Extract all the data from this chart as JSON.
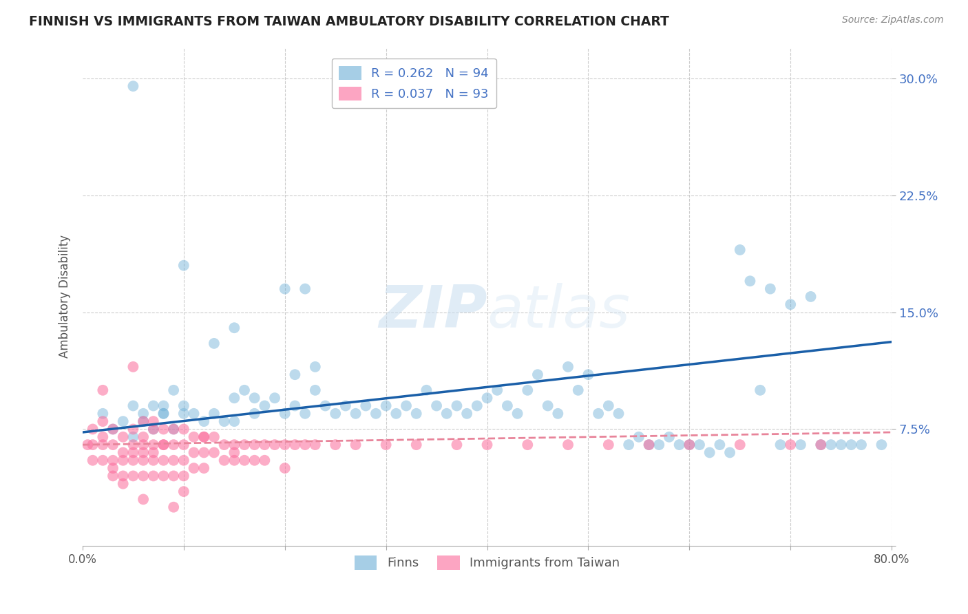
{
  "title": "FINNISH VS IMMIGRANTS FROM TAIWAN AMBULATORY DISABILITY CORRELATION CHART",
  "source": "Source: ZipAtlas.com",
  "ylabel": "Ambulatory Disability",
  "xlabel": "",
  "xlim": [
    0.0,
    0.8
  ],
  "ylim": [
    0.0,
    0.32
  ],
  "yticks": [
    0.0,
    0.075,
    0.15,
    0.225,
    0.3
  ],
  "ytick_labels": [
    "",
    "7.5%",
    "15.0%",
    "22.5%",
    "30.0%"
  ],
  "xticks": [
    0.0,
    0.1,
    0.2,
    0.3,
    0.4,
    0.5,
    0.6,
    0.7,
    0.8
  ],
  "xtick_labels": [
    "0.0%",
    "",
    "",
    "",
    "",
    "",
    "",
    "",
    "80.0%"
  ],
  "background_color": "#ffffff",
  "grid_color": "#cccccc",
  "finns_color": "#6baed6",
  "taiwan_color": "#fb6a9a",
  "finns_line_color": "#1a5fa8",
  "taiwan_line_color": "#e8849a",
  "finns_R": 0.262,
  "finns_N": 94,
  "taiwan_R": 0.037,
  "taiwan_N": 93,
  "watermark": "ZIPatlas",
  "legend_label_finns": "Finns",
  "legend_label_taiwan": "Immigrants from Taiwan",
  "finns_x": [
    0.02,
    0.03,
    0.04,
    0.05,
    0.05,
    0.06,
    0.06,
    0.07,
    0.07,
    0.08,
    0.08,
    0.09,
    0.09,
    0.1,
    0.1,
    0.11,
    0.12,
    0.13,
    0.13,
    0.14,
    0.15,
    0.15,
    0.16,
    0.17,
    0.18,
    0.19,
    0.2,
    0.21,
    0.22,
    0.22,
    0.23,
    0.24,
    0.25,
    0.26,
    0.27,
    0.28,
    0.29,
    0.3,
    0.31,
    0.32,
    0.33,
    0.34,
    0.35,
    0.36,
    0.37,
    0.38,
    0.39,
    0.4,
    0.41,
    0.42,
    0.43,
    0.44,
    0.45,
    0.46,
    0.47,
    0.48,
    0.49,
    0.5,
    0.51,
    0.52,
    0.53,
    0.54,
    0.55,
    0.56,
    0.57,
    0.58,
    0.59,
    0.6,
    0.61,
    0.62,
    0.63,
    0.64,
    0.65,
    0.66,
    0.67,
    0.68,
    0.69,
    0.7,
    0.71,
    0.72,
    0.73,
    0.74,
    0.75,
    0.76,
    0.77,
    0.79,
    0.15,
    0.21,
    0.17,
    0.23,
    0.1,
    0.05,
    0.08,
    0.2
  ],
  "finns_y": [
    0.085,
    0.075,
    0.08,
    0.09,
    0.07,
    0.08,
    0.085,
    0.09,
    0.075,
    0.085,
    0.09,
    0.1,
    0.075,
    0.085,
    0.09,
    0.085,
    0.08,
    0.13,
    0.085,
    0.08,
    0.095,
    0.08,
    0.1,
    0.085,
    0.09,
    0.095,
    0.085,
    0.09,
    0.085,
    0.165,
    0.1,
    0.09,
    0.085,
    0.09,
    0.085,
    0.09,
    0.085,
    0.09,
    0.085,
    0.09,
    0.085,
    0.1,
    0.09,
    0.085,
    0.09,
    0.085,
    0.09,
    0.095,
    0.1,
    0.09,
    0.085,
    0.1,
    0.11,
    0.09,
    0.085,
    0.115,
    0.1,
    0.11,
    0.085,
    0.09,
    0.085,
    0.065,
    0.07,
    0.065,
    0.065,
    0.07,
    0.065,
    0.065,
    0.065,
    0.06,
    0.065,
    0.06,
    0.19,
    0.17,
    0.1,
    0.165,
    0.065,
    0.155,
    0.065,
    0.16,
    0.065,
    0.065,
    0.065,
    0.065,
    0.065,
    0.065,
    0.14,
    0.11,
    0.095,
    0.115,
    0.18,
    0.295,
    0.085,
    0.165
  ],
  "taiwan_x": [
    0.005,
    0.01,
    0.01,
    0.01,
    0.02,
    0.02,
    0.02,
    0.02,
    0.03,
    0.03,
    0.03,
    0.03,
    0.04,
    0.04,
    0.04,
    0.04,
    0.05,
    0.05,
    0.05,
    0.05,
    0.05,
    0.06,
    0.06,
    0.06,
    0.06,
    0.06,
    0.06,
    0.07,
    0.07,
    0.07,
    0.07,
    0.07,
    0.08,
    0.08,
    0.08,
    0.08,
    0.09,
    0.09,
    0.09,
    0.09,
    0.1,
    0.1,
    0.1,
    0.1,
    0.11,
    0.11,
    0.11,
    0.12,
    0.12,
    0.12,
    0.13,
    0.13,
    0.14,
    0.14,
    0.15,
    0.15,
    0.16,
    0.16,
    0.17,
    0.17,
    0.18,
    0.19,
    0.2,
    0.21,
    0.22,
    0.23,
    0.25,
    0.27,
    0.3,
    0.33,
    0.37,
    0.4,
    0.44,
    0.48,
    0.52,
    0.56,
    0.6,
    0.65,
    0.7,
    0.73,
    0.02,
    0.05,
    0.08,
    0.03,
    0.06,
    0.09,
    0.04,
    0.07,
    0.1,
    0.12,
    0.15,
    0.18,
    0.2
  ],
  "taiwan_y": [
    0.065,
    0.075,
    0.065,
    0.055,
    0.07,
    0.08,
    0.065,
    0.055,
    0.075,
    0.065,
    0.055,
    0.045,
    0.07,
    0.06,
    0.055,
    0.045,
    0.075,
    0.065,
    0.06,
    0.055,
    0.045,
    0.08,
    0.07,
    0.065,
    0.06,
    0.055,
    0.045,
    0.075,
    0.065,
    0.06,
    0.055,
    0.045,
    0.075,
    0.065,
    0.055,
    0.045,
    0.075,
    0.065,
    0.055,
    0.045,
    0.075,
    0.065,
    0.055,
    0.045,
    0.07,
    0.06,
    0.05,
    0.07,
    0.06,
    0.05,
    0.07,
    0.06,
    0.065,
    0.055,
    0.065,
    0.055,
    0.065,
    0.055,
    0.065,
    0.055,
    0.065,
    0.065,
    0.065,
    0.065,
    0.065,
    0.065,
    0.065,
    0.065,
    0.065,
    0.065,
    0.065,
    0.065,
    0.065,
    0.065,
    0.065,
    0.065,
    0.065,
    0.065,
    0.065,
    0.065,
    0.1,
    0.115,
    0.065,
    0.05,
    0.03,
    0.025,
    0.04,
    0.08,
    0.035,
    0.07,
    0.06,
    0.055,
    0.05
  ],
  "finns_line_x": [
    0.0,
    0.8
  ],
  "finns_line_y": [
    0.073,
    0.131
  ],
  "taiwan_line_x": [
    0.0,
    0.8
  ],
  "taiwan_line_y": [
    0.065,
    0.073
  ]
}
